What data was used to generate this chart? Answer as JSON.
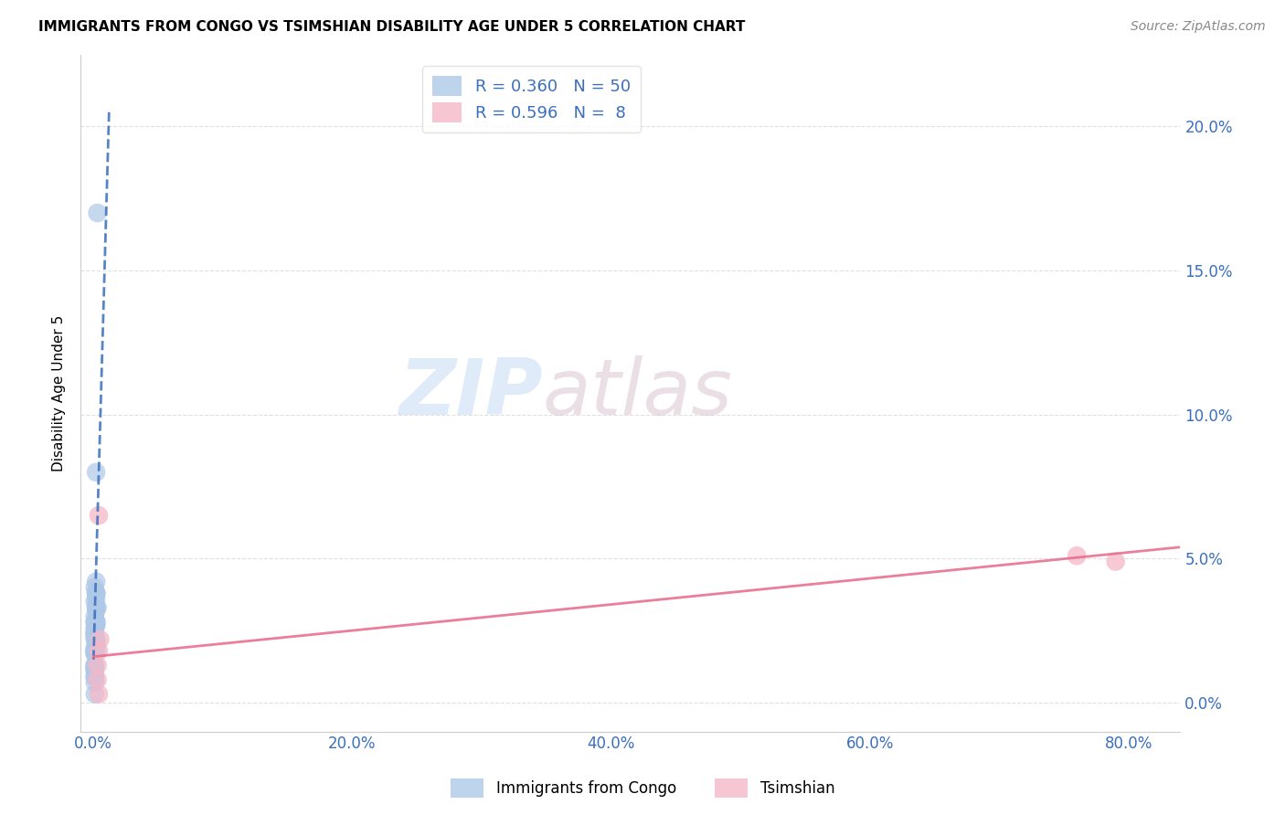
{
  "title": "IMMIGRANTS FROM CONGO VS TSIMSHIAN DISABILITY AGE UNDER 5 CORRELATION CHART",
  "source": "Source: ZipAtlas.com",
  "xlabel_ticks": [
    "0.0%",
    "20.0%",
    "40.0%",
    "60.0%",
    "80.0%"
  ],
  "ylabel_ticks_right": [
    "20.0%",
    "15.0%",
    "10.0%",
    "5.0%",
    "0.0%"
  ],
  "ylabel_ticks_right_vals": [
    0.2,
    0.15,
    0.1,
    0.05,
    0.0
  ],
  "xlim": [
    -0.01,
    0.84
  ],
  "ylim": [
    -0.01,
    0.225
  ],
  "ylabel": "Disability Age Under 5",
  "watermark_zip": "ZIP",
  "watermark_atlas": "atlas",
  "legend1_label": "R = 0.360   N = 50",
  "legend2_label": "R = 0.596   N =  8",
  "blue_color": "#aec8e8",
  "pink_color": "#f4b8c8",
  "trendline_blue_color": "#3a6fbd",
  "trendline_pink_color": "#e87090",
  "congo_points_x": [
    0.003,
    0.002,
    0.001,
    0.002,
    0.002,
    0.001,
    0.002,
    0.002,
    0.001,
    0.002,
    0.001,
    0.002,
    0.001,
    0.001,
    0.002,
    0.001,
    0.002,
    0.001,
    0.002,
    0.001,
    0.002,
    0.001,
    0.001,
    0.002,
    0.002,
    0.001,
    0.002,
    0.001,
    0.002,
    0.001,
    0.003,
    0.002,
    0.001,
    0.002,
    0.001,
    0.001,
    0.002,
    0.001,
    0.002,
    0.001,
    0.001,
    0.001,
    0.001,
    0.001,
    0.002,
    0.002,
    0.001,
    0.001,
    0.001,
    0.001
  ],
  "congo_points_y": [
    0.17,
    0.08,
    0.04,
    0.038,
    0.042,
    0.035,
    0.038,
    0.036,
    0.028,
    0.032,
    0.03,
    0.033,
    0.025,
    0.022,
    0.028,
    0.024,
    0.022,
    0.018,
    0.033,
    0.026,
    0.021,
    0.028,
    0.017,
    0.021,
    0.038,
    0.024,
    0.027,
    0.012,
    0.019,
    0.024,
    0.033,
    0.028,
    0.019,
    0.027,
    0.018,
    0.011,
    0.022,
    0.018,
    0.028,
    0.023,
    0.013,
    0.017,
    0.009,
    0.013,
    0.018,
    0.021,
    0.009,
    0.012,
    0.007,
    0.003
  ],
  "tsimshian_points_x": [
    0.004,
    0.005,
    0.76,
    0.79,
    0.003,
    0.004,
    0.003,
    0.004
  ],
  "tsimshian_points_y": [
    0.065,
    0.022,
    0.051,
    0.049,
    0.008,
    0.018,
    0.013,
    0.003
  ],
  "congo_trend_x": [
    0.0,
    0.012
  ],
  "congo_trend_y": [
    0.015,
    0.205
  ],
  "pink_trend_x": [
    0.0,
    0.84
  ],
  "pink_trend_y": [
    0.016,
    0.054
  ],
  "grid_color": "#dddddd",
  "background_color": "#ffffff",
  "bottom_legend": [
    "Immigrants from Congo",
    "Tsimshian"
  ]
}
